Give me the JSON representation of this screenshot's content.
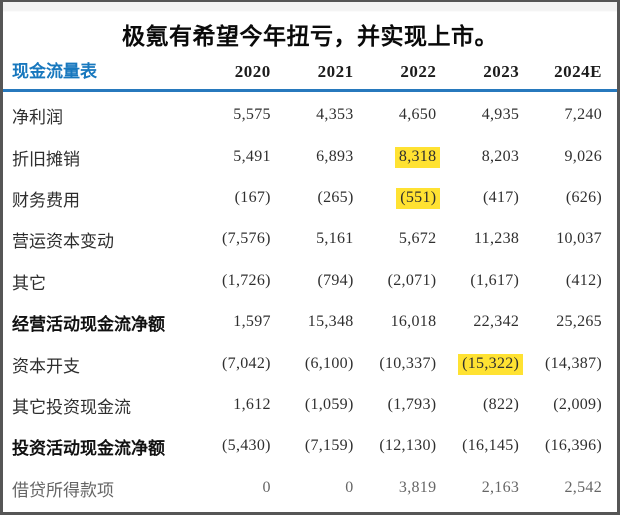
{
  "colors": {
    "frame_gray": "#565656",
    "accent_blue": "#1878be",
    "header_rule_blue": "#2779bd",
    "highlight_yellow": "#ffe232"
  },
  "chart_data": {
    "type": "table",
    "title": "极氪有希望今年扭亏，并实现上市。",
    "header_label": "现金流量表",
    "columns": [
      "2020",
      "2021",
      "2022",
      "2023",
      "2024E"
    ],
    "rows": [
      {
        "label": "净利润",
        "values": [
          "5,575",
          "4,353",
          "4,650",
          "4,935",
          "7,240"
        ]
      },
      {
        "label": "折旧摊销",
        "values": [
          "5,491",
          "6,893",
          "8,318",
          "8,203",
          "9,026"
        ]
      },
      {
        "label": "财务费用",
        "values": [
          "(167)",
          "(265)",
          "(551)",
          "(417)",
          "(626)"
        ]
      },
      {
        "label": "营运资本变动",
        "values": [
          "(7,576)",
          "5,161",
          "5,672",
          "11,238",
          "10,037"
        ]
      },
      {
        "label": "其它",
        "values": [
          "(1,726)",
          "(794)",
          "(2,071)",
          "(1,617)",
          "(412)"
        ]
      },
      {
        "label": "经营活动现金流净额",
        "values": [
          "1,597",
          "15,348",
          "16,018",
          "22,342",
          "25,265"
        ],
        "bold": true
      },
      {
        "label": "资本开支",
        "values": [
          "(7,042)",
          "(6,100)",
          "(10,337)",
          "(15,322)",
          "(14,387)"
        ]
      },
      {
        "label": "其它投资现金流",
        "values": [
          "1,612",
          "(1,059)",
          "(1,793)",
          "(822)",
          "(2,009)"
        ]
      },
      {
        "label": "投资活动现金流净额",
        "values": [
          "(5,430)",
          "(7,159)",
          "(12,130)",
          "(16,145)",
          "(16,396)"
        ],
        "bold": true
      },
      {
        "label": "借贷所得款项",
        "values": [
          "0",
          "0",
          "3,819",
          "2,163",
          "2,542"
        ]
      }
    ],
    "highlighted_cells": [
      {
        "row": "折旧摊销",
        "column": "2022",
        "value": "8,318"
      },
      {
        "row": "财务费用",
        "column": "2022",
        "value": "(551)"
      },
      {
        "row": "资本开支",
        "column": "2023",
        "value": "(15,322)"
      }
    ],
    "layout": {
      "grid": false,
      "bold_subtotal_rows": [
        5,
        8
      ],
      "faded_rows": [
        9
      ]
    }
  }
}
